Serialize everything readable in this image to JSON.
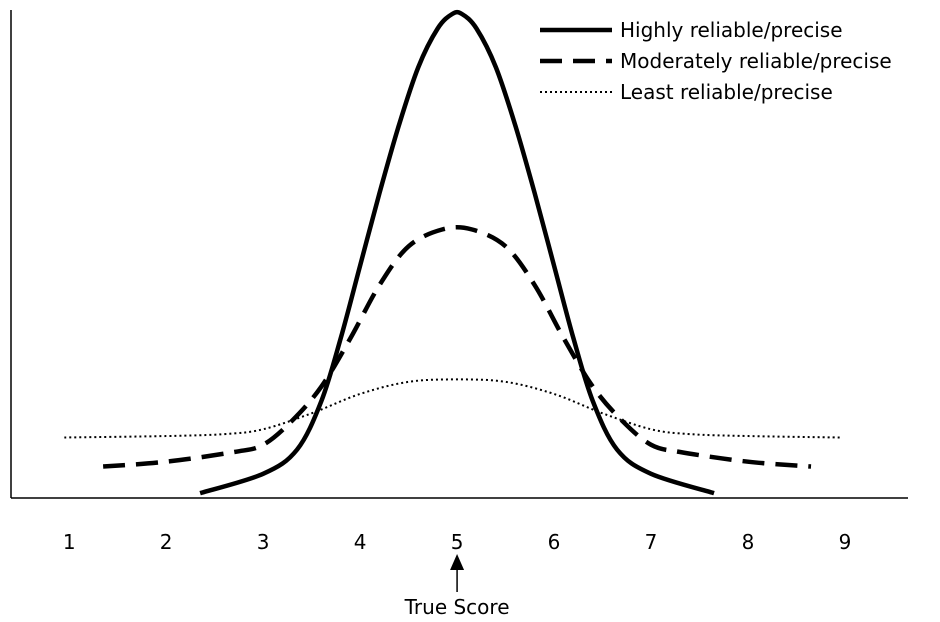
{
  "chart_data": {
    "type": "line",
    "title": "",
    "xlabel": "",
    "ylabel": "",
    "x_ticks": [
      "1",
      "2",
      "3",
      "4",
      "5",
      "6",
      "7",
      "8",
      "9"
    ],
    "xlim": [
      0.4,
      9.65
    ],
    "ylim": [
      0,
      100
    ],
    "grid": false,
    "legend_position": "top-right",
    "annotation": {
      "text": "True Score",
      "x": 5
    },
    "series": [
      {
        "name": "Highly reliable/precise",
        "style": "solid",
        "color": "#000000",
        "points": [
          [
            2.35,
            1
          ],
          [
            3.0,
            5
          ],
          [
            3.35,
            10
          ],
          [
            3.6,
            20
          ],
          [
            3.8,
            33
          ],
          [
            4.0,
            48
          ],
          [
            4.2,
            63
          ],
          [
            4.4,
            77
          ],
          [
            4.6,
            89
          ],
          [
            4.8,
            97
          ],
          [
            4.95,
            100
          ],
          [
            5.05,
            100
          ],
          [
            5.2,
            97
          ],
          [
            5.4,
            89
          ],
          [
            5.6,
            77
          ],
          [
            5.8,
            63
          ],
          [
            6.0,
            48
          ],
          [
            6.2,
            33
          ],
          [
            6.4,
            20
          ],
          [
            6.65,
            10
          ],
          [
            7.0,
            5
          ],
          [
            7.65,
            1
          ]
        ]
      },
      {
        "name": "Moderately reliable/precise",
        "style": "dashed",
        "color": "#000000",
        "points": [
          [
            1.35,
            6.5
          ],
          [
            2.0,
            7.5
          ],
          [
            2.7,
            9.5
          ],
          [
            3.0,
            11
          ],
          [
            3.3,
            16
          ],
          [
            3.6,
            23
          ],
          [
            3.9,
            33
          ],
          [
            4.2,
            44
          ],
          [
            4.5,
            52
          ],
          [
            4.85,
            55.5
          ],
          [
            5.15,
            55.5
          ],
          [
            5.5,
            52
          ],
          [
            5.8,
            44
          ],
          [
            6.1,
            33
          ],
          [
            6.4,
            23
          ],
          [
            6.7,
            16
          ],
          [
            7.0,
            11
          ],
          [
            7.3,
            9.5
          ],
          [
            8.0,
            7.5
          ],
          [
            8.65,
            6.5
          ]
        ]
      },
      {
        "name": "Least reliable/precise",
        "style": "dotted",
        "color": "#000000",
        "points": [
          [
            0.95,
            12.5
          ],
          [
            2.0,
            12.8
          ],
          [
            2.6,
            13.2
          ],
          [
            3.0,
            14.2
          ],
          [
            3.5,
            17.5
          ],
          [
            4.0,
            21.5
          ],
          [
            4.5,
            24
          ],
          [
            5.0,
            24.5
          ],
          [
            5.5,
            24
          ],
          [
            6.0,
            21.5
          ],
          [
            6.5,
            17.5
          ],
          [
            7.0,
            14.2
          ],
          [
            7.4,
            13.2
          ],
          [
            8.0,
            12.8
          ],
          [
            8.95,
            12.5
          ]
        ]
      }
    ]
  }
}
